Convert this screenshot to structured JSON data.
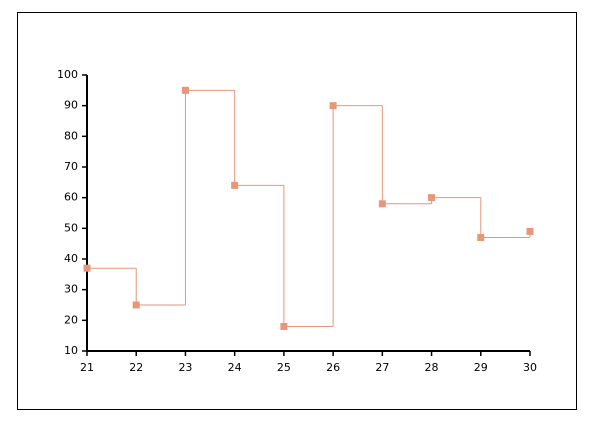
{
  "chart_data": {
    "type": "line",
    "step": "post",
    "color": "#e8967a",
    "x": [
      21,
      22,
      23,
      24,
      25,
      26,
      27,
      28,
      29,
      30
    ],
    "values": [
      37,
      25,
      95,
      64,
      18,
      90,
      58,
      60,
      47,
      49
    ],
    "xlim": [
      21,
      30
    ],
    "xticks": [
      21,
      22,
      23,
      24,
      25,
      26,
      27,
      28,
      29,
      30
    ],
    "ylim": [
      10,
      100
    ],
    "yticks": [
      10,
      20,
      30,
      40,
      50,
      60,
      70,
      80,
      90,
      100
    ]
  }
}
